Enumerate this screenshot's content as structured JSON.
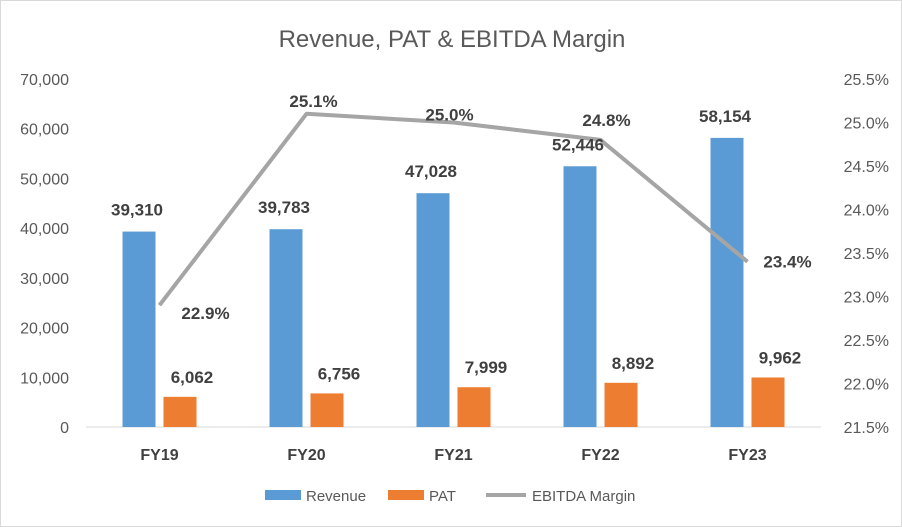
{
  "chart_data": {
    "type": "bar",
    "title": "Revenue, PAT & EBITDA Margin",
    "categories": [
      "FY19",
      "FY20",
      "FY21",
      "FY22",
      "FY23"
    ],
    "series": [
      {
        "name": "Revenue",
        "kind": "bar",
        "axis": "left",
        "color": "#5b9bd5",
        "values": [
          39310,
          39783,
          47028,
          52446,
          58154
        ],
        "labels": [
          "39,310",
          "39,783",
          "47,028",
          "52,446",
          "58,154"
        ]
      },
      {
        "name": "PAT",
        "kind": "bar",
        "axis": "left",
        "color": "#ed7d31",
        "values": [
          6062,
          6756,
          7999,
          8892,
          9962
        ],
        "labels": [
          "6,062",
          "6,756",
          "7,999",
          "8,892",
          "9,962"
        ]
      },
      {
        "name": "EBITDA Margin",
        "kind": "line",
        "axis": "right",
        "color": "#a5a5a5",
        "values": [
          22.9,
          25.1,
          25.0,
          24.8,
          23.4
        ],
        "labels": [
          "22.9%",
          "25.1%",
          "25.0%",
          "24.8%",
          "23.4%"
        ]
      }
    ],
    "y_left": {
      "min": 0,
      "max": 70000,
      "ticks": [
        0,
        10000,
        20000,
        30000,
        40000,
        50000,
        60000,
        70000
      ],
      "tick_labels": [
        "0",
        "10,000",
        "20,000",
        "30,000",
        "40,000",
        "50,000",
        "60,000",
        "70,000"
      ]
    },
    "y_right": {
      "min": 21.5,
      "max": 25.5,
      "ticks": [
        21.5,
        22.0,
        22.5,
        23.0,
        23.5,
        24.0,
        24.5,
        25.0,
        25.5
      ],
      "tick_labels": [
        "21.5%",
        "22.0%",
        "22.5%",
        "23.0%",
        "23.5%",
        "24.0%",
        "24.5%",
        "25.0%",
        "25.5%"
      ]
    },
    "legend": [
      "Revenue",
      "PAT",
      "EBITDA Margin"
    ],
    "legend_position": "bottom",
    "grid": false
  }
}
